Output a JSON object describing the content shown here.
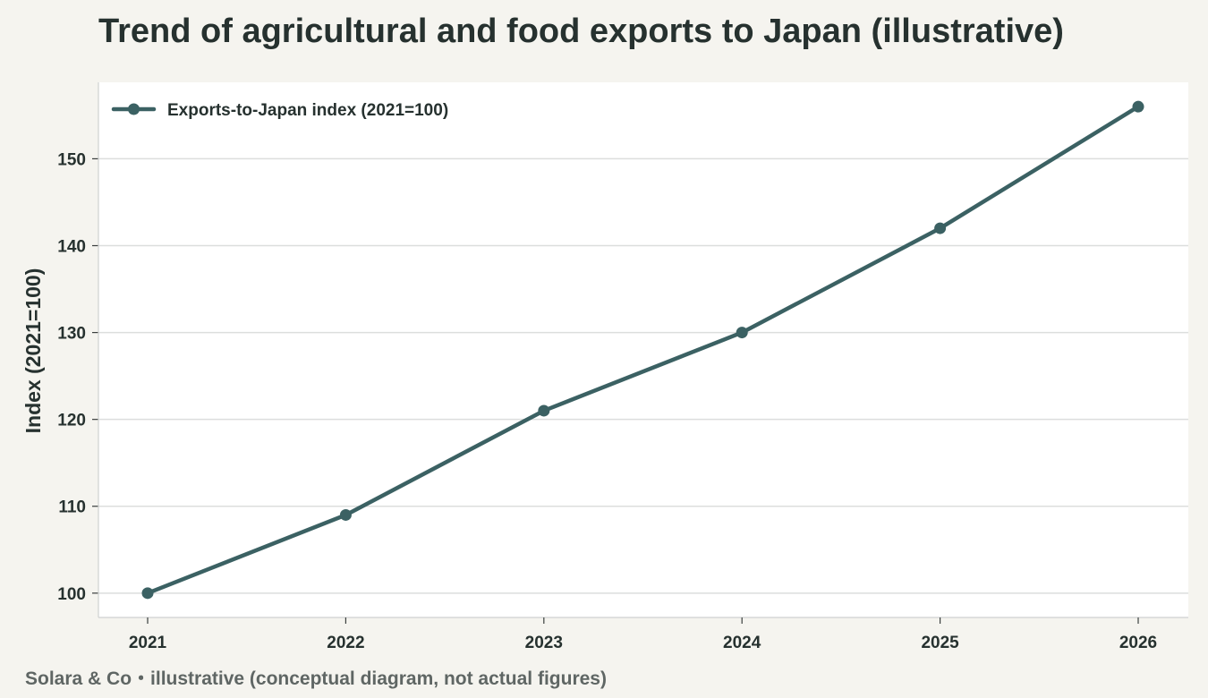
{
  "title": "Trend of agricultural and food exports to Japan (illustrative)",
  "footnote": "Solara & Co・illustrative (conceptual diagram, not actual figures)",
  "colors": {
    "series": "#3b6163",
    "grid": "#dcdedd",
    "plot_background": "#ffffff",
    "page_background": "#f5f4ef",
    "text": "#26312f"
  },
  "chart_data": {
    "type": "line",
    "x": [
      "2021",
      "2022",
      "2023",
      "2024",
      "2025",
      "2026"
    ],
    "series": [
      {
        "name": "Exports-to-Japan index (2021=100)",
        "values": [
          100,
          109,
          121,
          130,
          142,
          156
        ]
      }
    ],
    "xlabel": "",
    "ylabel": "Index (2021=100)",
    "ylim": [
      97.2,
      158.8
    ],
    "yticks": [
      100,
      110,
      120,
      130,
      140,
      150
    ],
    "grid": "horizontal",
    "legend_position": "top-left",
    "markers": true
  }
}
